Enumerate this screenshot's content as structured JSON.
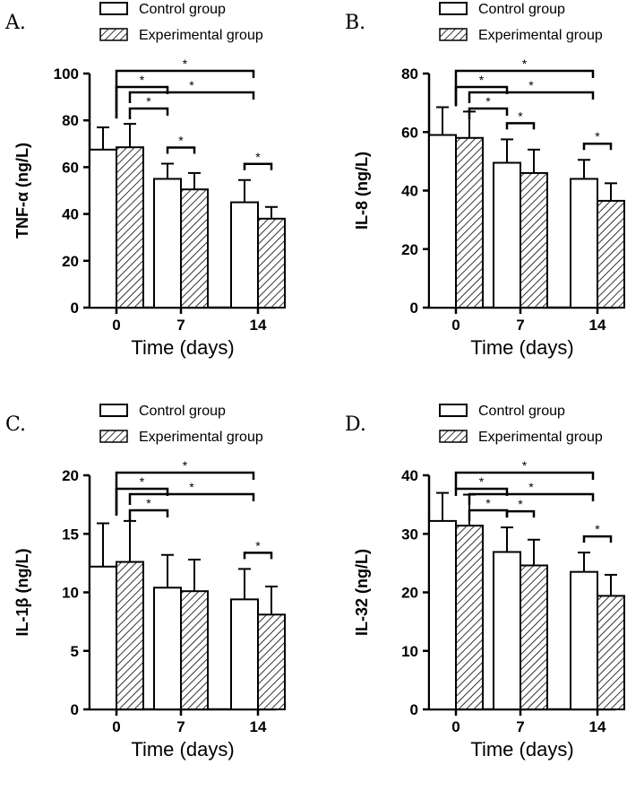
{
  "legend": {
    "control_label": "Control group",
    "experimental_label": "Experimental group"
  },
  "colors": {
    "axis": "#000000",
    "control_fill": "#ffffff",
    "experimental_hatch": "#000000"
  },
  "chart_data": [
    {
      "type": "bar",
      "panel": "A.",
      "title": "",
      "xlabel": "Time (days)",
      "ylabel": "TNF-α (ng/L)",
      "categories": [
        "0",
        "7",
        "14"
      ],
      "ylim": [
        0,
        100
      ],
      "yticks": [
        "0",
        "20",
        "40",
        "60",
        "80",
        "100"
      ],
      "series": [
        {
          "name": "Control group",
          "values": [
            67.5,
            55,
            45
          ],
          "errors": [
            9.5,
            6.5,
            9.5
          ]
        },
        {
          "name": "Experimental group",
          "values": [
            68.5,
            50.5,
            38
          ],
          "errors": [
            10,
            7,
            5
          ]
        }
      ],
      "significance": [
        {
          "label": "*",
          "from": "0",
          "to": "7",
          "level": 1,
          "left": "center"
        },
        {
          "label": "*",
          "from": "0",
          "to": "14",
          "level": 0,
          "left": "center"
        },
        {
          "label": "*",
          "from": "0",
          "to": "7",
          "level": 2,
          "left": "experimental"
        },
        {
          "label": "*",
          "from": "0",
          "to": "14",
          "level": 1.5,
          "left": "experimental"
        },
        {
          "label": "*",
          "from": "7",
          "to": "7",
          "level": "pair"
        },
        {
          "label": "*",
          "from": "14",
          "to": "14",
          "level": "pair"
        }
      ]
    },
    {
      "type": "bar",
      "panel": "B.",
      "title": "",
      "xlabel": "Time (days)",
      "ylabel": "IL-8 (ng/L)",
      "categories": [
        "0",
        "7",
        "14"
      ],
      "ylim": [
        0,
        80
      ],
      "yticks": [
        "0",
        "20",
        "40",
        "60",
        "80"
      ],
      "series": [
        {
          "name": "Control group",
          "values": [
            59,
            49.5,
            44
          ],
          "errors": [
            9.5,
            8,
            6.5
          ]
        },
        {
          "name": "Experimental group",
          "values": [
            58,
            46,
            36.5
          ],
          "errors": [
            9,
            8,
            6
          ]
        }
      ],
      "significance": [
        {
          "label": "*",
          "from": "0",
          "to": "7",
          "level": 1,
          "left": "center"
        },
        {
          "label": "*",
          "from": "0",
          "to": "14",
          "level": 0,
          "left": "center"
        },
        {
          "label": "*",
          "from": "0",
          "to": "7",
          "level": 2,
          "left": "experimental"
        },
        {
          "label": "*",
          "from": "0",
          "to": "14",
          "level": 1.5,
          "left": "experimental"
        },
        {
          "label": "*",
          "from": "7",
          "to": "7",
          "level": "pair"
        },
        {
          "label": "*",
          "from": "14",
          "to": "14",
          "level": "pair"
        }
      ]
    },
    {
      "type": "bar",
      "panel": "C.",
      "title": "",
      "xlabel": "Time (days)",
      "ylabel": "IL-1β (ng/L)",
      "categories": [
        "0",
        "7",
        "14"
      ],
      "ylim": [
        0,
        20
      ],
      "yticks": [
        "0",
        "5",
        "10",
        "15",
        "20"
      ],
      "series": [
        {
          "name": "Control group",
          "values": [
            12.2,
            10.4,
            9.4
          ],
          "errors": [
            3.7,
            2.8,
            2.6
          ]
        },
        {
          "name": "Experimental group",
          "values": [
            12.6,
            10.1,
            8.1
          ],
          "errors": [
            3.5,
            2.7,
            2.4
          ]
        }
      ],
      "significance": [
        {
          "label": "*",
          "from": "0",
          "to": "7",
          "level": 1,
          "left": "center"
        },
        {
          "label": "*",
          "from": "0",
          "to": "14",
          "level": 0,
          "left": "center"
        },
        {
          "label": "*",
          "from": "0",
          "to": "7",
          "level": 2,
          "left": "experimental"
        },
        {
          "label": "*",
          "from": "0",
          "to": "14",
          "level": 1.5,
          "left": "experimental"
        },
        {
          "label": "*",
          "from": "14",
          "to": "14",
          "level": "pair"
        }
      ]
    },
    {
      "type": "bar",
      "panel": "D.",
      "title": "",
      "xlabel": "Time (days)",
      "ylabel": "IL-32 (ng/L)",
      "categories": [
        "0",
        "7",
        "14"
      ],
      "ylim": [
        0,
        40
      ],
      "yticks": [
        "0",
        "10",
        "20",
        "30",
        "40"
      ],
      "series": [
        {
          "name": "Control group",
          "values": [
            32.2,
            26.9,
            23.5
          ],
          "errors": [
            4.8,
            4.2,
            3.3
          ]
        },
        {
          "name": "Experimental group",
          "values": [
            31.4,
            24.6,
            19.4
          ],
          "errors": [
            5.3,
            4.4,
            3.6
          ]
        }
      ],
      "significance": [
        {
          "label": "*",
          "from": "0",
          "to": "7",
          "level": 1,
          "left": "center"
        },
        {
          "label": "*",
          "from": "0",
          "to": "14",
          "level": 0,
          "left": "center"
        },
        {
          "label": "*",
          "from": "0",
          "to": "7",
          "level": 2,
          "left": "experimental"
        },
        {
          "label": "*",
          "from": "0",
          "to": "14",
          "level": 1.5,
          "left": "experimental"
        },
        {
          "label": "*",
          "from": "7",
          "to": "7",
          "level": "pair"
        },
        {
          "label": "*",
          "from": "14",
          "to": "14",
          "level": "pair"
        }
      ]
    }
  ]
}
